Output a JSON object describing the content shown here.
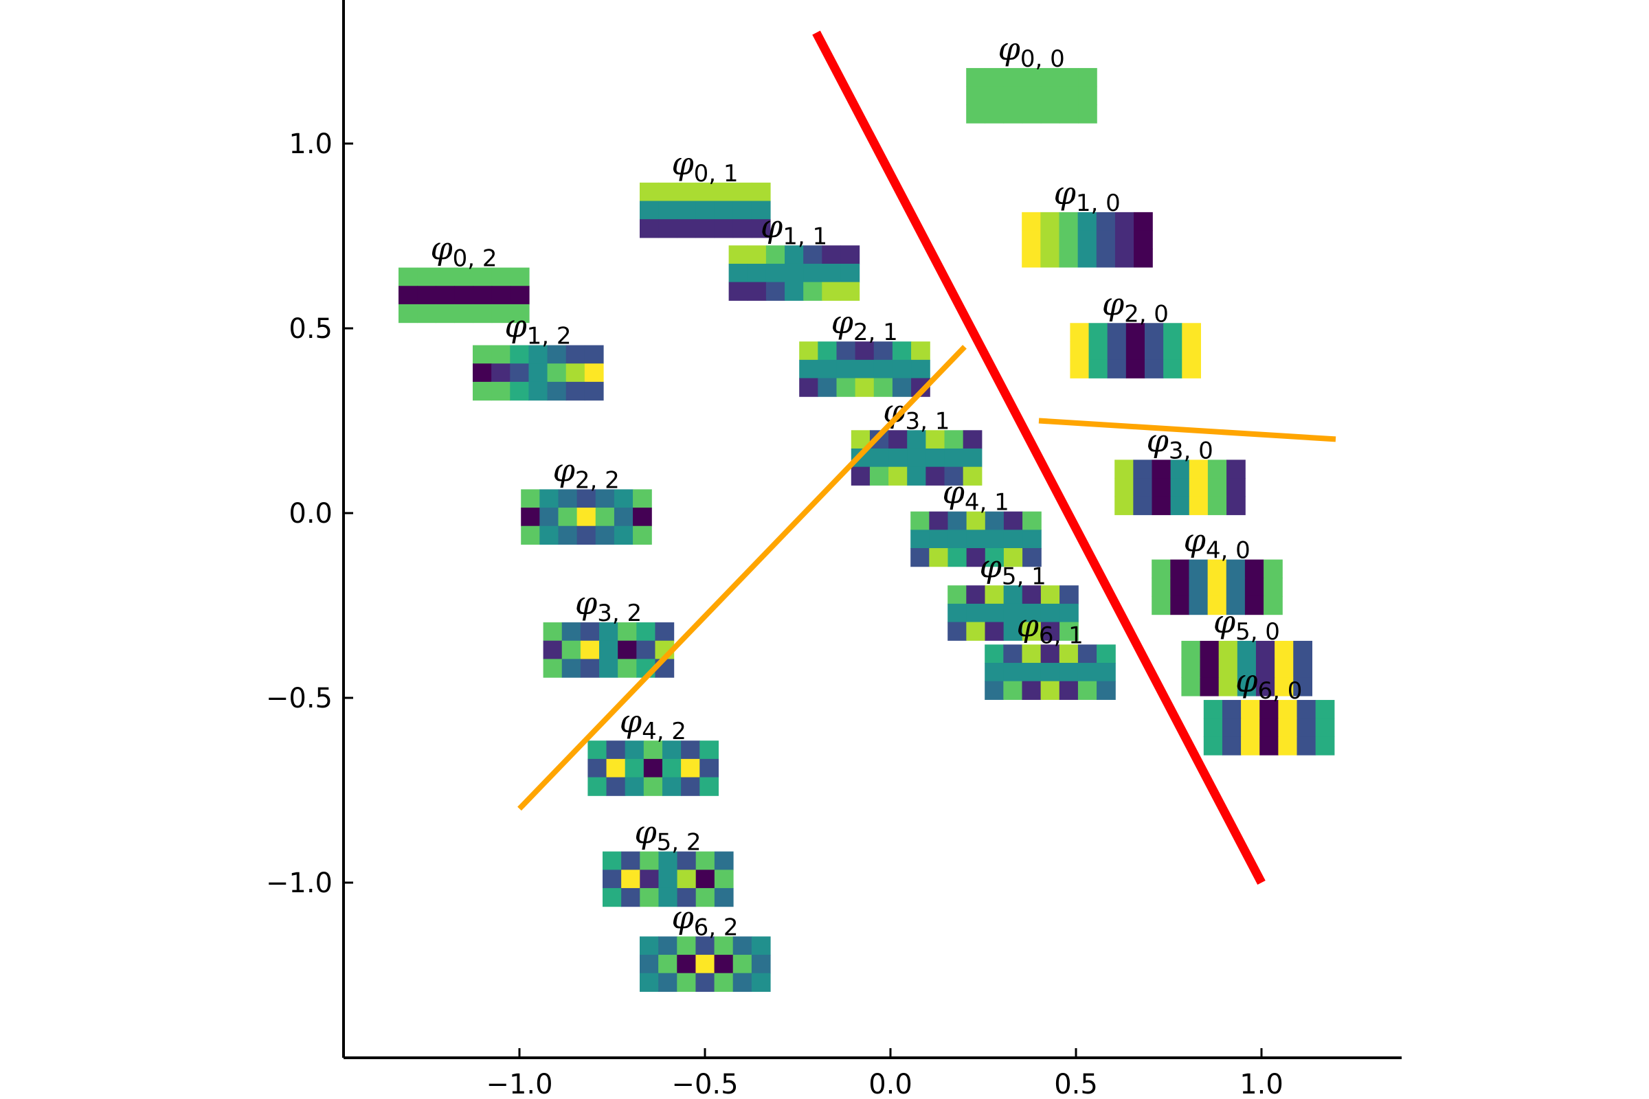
{
  "chart_data": {
    "type": "scatter",
    "title": "",
    "xlabel": "",
    "ylabel": "",
    "xlim": [
      -1.45,
      1.4
    ],
    "ylim": [
      -1.48,
      1.38
    ],
    "x_ticks": [
      -1.0,
      -0.5,
      0.0,
      0.5,
      1.0
    ],
    "y_ticks": [
      -1.0,
      -0.5,
      0.0,
      0.5,
      1.0
    ],
    "x_tick_labels": [
      "−1.0",
      "−0.5",
      "0.0",
      "0.5",
      "1.0"
    ],
    "y_tick_labels": [
      "−1.0",
      "−0.5",
      "0.0",
      "0.5",
      "1.0"
    ],
    "grid": false,
    "spines": [
      "left",
      "bottom"
    ],
    "tick_direction": "in",
    "colormap": "viridis",
    "basis_images": [
      {
        "label": "φ",
        "sub": "0, 0",
        "n": 0,
        "m": 0,
        "x": 0.38,
        "y": 1.13
      },
      {
        "label": "φ",
        "sub": "1, 0",
        "n": 1,
        "m": 0,
        "x": 0.53,
        "y": 0.74
      },
      {
        "label": "φ",
        "sub": "2, 0",
        "n": 2,
        "m": 0,
        "x": 0.66,
        "y": 0.44
      },
      {
        "label": "φ",
        "sub": "3, 0",
        "n": 3,
        "m": 0,
        "x": 0.78,
        "y": 0.07
      },
      {
        "label": "φ",
        "sub": "4, 0",
        "n": 4,
        "m": 0,
        "x": 0.88,
        "y": -0.2
      },
      {
        "label": "φ",
        "sub": "5, 0",
        "n": 5,
        "m": 0,
        "x": 0.96,
        "y": -0.42
      },
      {
        "label": "φ",
        "sub": "6, 0",
        "n": 6,
        "m": 0,
        "x": 1.02,
        "y": -0.58
      },
      {
        "label": "φ",
        "sub": "0, 1",
        "n": 0,
        "m": 1,
        "x": -0.5,
        "y": 0.82
      },
      {
        "label": "φ",
        "sub": "1, 1",
        "n": 1,
        "m": 1,
        "x": -0.26,
        "y": 0.65
      },
      {
        "label": "φ",
        "sub": "2, 1",
        "n": 2,
        "m": 1,
        "x": -0.07,
        "y": 0.39
      },
      {
        "label": "φ",
        "sub": "3, 1",
        "n": 3,
        "m": 1,
        "x": 0.07,
        "y": 0.15
      },
      {
        "label": "φ",
        "sub": "4, 1",
        "n": 4,
        "m": 1,
        "x": 0.23,
        "y": -0.07
      },
      {
        "label": "φ",
        "sub": "5, 1",
        "n": 5,
        "m": 1,
        "x": 0.33,
        "y": -0.27
      },
      {
        "label": "φ",
        "sub": "6, 1",
        "n": 6,
        "m": 1,
        "x": 0.43,
        "y": -0.43
      },
      {
        "label": "φ",
        "sub": "0, 2",
        "n": 0,
        "m": 2,
        "x": -1.15,
        "y": 0.59
      },
      {
        "label": "φ",
        "sub": "1, 2",
        "n": 1,
        "m": 2,
        "x": -0.95,
        "y": 0.38
      },
      {
        "label": "φ",
        "sub": "2, 2",
        "n": 2,
        "m": 2,
        "x": -0.82,
        "y": -0.01
      },
      {
        "label": "φ",
        "sub": "3, 2",
        "n": 3,
        "m": 2,
        "x": -0.76,
        "y": -0.37
      },
      {
        "label": "φ",
        "sub": "4, 2",
        "n": 4,
        "m": 2,
        "x": -0.64,
        "y": -0.69
      },
      {
        "label": "φ",
        "sub": "5, 2",
        "n": 5,
        "m": 2,
        "x": -0.6,
        "y": -0.99
      },
      {
        "label": "φ",
        "sub": "6, 2",
        "n": 6,
        "m": 2,
        "x": -0.5,
        "y": -1.22
      }
    ],
    "lines": [
      {
        "color": "#ff0000",
        "x": [
          -0.2,
          1.0
        ],
        "y": [
          1.3,
          -1.0
        ]
      },
      {
        "color": "#ffa500",
        "x": [
          -1.0,
          0.2
        ],
        "y": [
          -0.8,
          0.45
        ]
      },
      {
        "color": "#ffa500",
        "x": [
          0.4,
          1.2
        ],
        "y": [
          0.25,
          0.2
        ]
      }
    ],
    "palette": [
      "#440154",
      "#472c7a",
      "#3b518b",
      "#2c718e",
      "#21908d",
      "#27ad81",
      "#5cc863",
      "#aadc32",
      "#fde725"
    ]
  }
}
